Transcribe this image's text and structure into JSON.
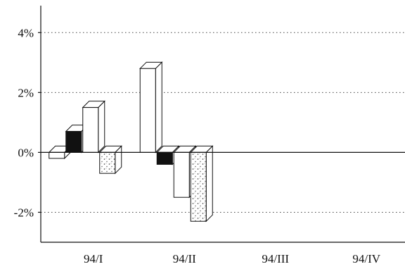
{
  "chart_data": {
    "type": "bar",
    "title": "",
    "xlabel": "",
    "ylabel": "",
    "categories": [
      "94/I",
      "94/II",
      "94/III",
      "94/IV"
    ],
    "y_ticks": [
      {
        "value": 4,
        "label": "4%"
      },
      {
        "value": 2,
        "label": "2%"
      },
      {
        "value": 0,
        "label": "0%"
      },
      {
        "value": -2,
        "label": "-2%"
      }
    ],
    "ylim": [
      -3.0,
      4.9
    ],
    "grid": true,
    "bar_style": "3d",
    "series": [
      {
        "fill": "#ffffff",
        "pattern": "none",
        "values": [
          -0.2,
          2.8,
          null,
          null
        ]
      },
      {
        "fill": "#111111",
        "pattern": "none",
        "values": [
          0.7,
          -0.4,
          null,
          null
        ]
      },
      {
        "fill": "#ffffff",
        "pattern": "none",
        "values": [
          1.5,
          -1.5,
          null,
          null
        ]
      },
      {
        "fill": "#111111",
        "pattern": "speckle",
        "values": [
          -0.7,
          -2.3,
          null,
          null
        ]
      }
    ],
    "series_order_by_category": [
      [
        0,
        1,
        2,
        3
      ],
      [
        0,
        1,
        2,
        3
      ]
    ]
  }
}
